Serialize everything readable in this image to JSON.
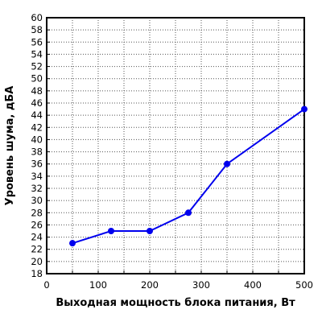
{
  "chart_data": {
    "type": "line",
    "title": "",
    "xlabel": "Выходная мощность блока питания, Вт",
    "ylabel": "Уровень шума, дБА",
    "xlim": [
      0,
      500
    ],
    "ylim": [
      18,
      60
    ],
    "xticks": [
      "0",
      "100",
      "200",
      "300",
      "400",
      "500"
    ],
    "yticks": [
      "18",
      "20",
      "22",
      "24",
      "26",
      "28",
      "30",
      "32",
      "34",
      "36",
      "38",
      "40",
      "42",
      "44",
      "46",
      "48",
      "50",
      "52",
      "54",
      "56",
      "58",
      "60"
    ],
    "grid": true,
    "legend": "none",
    "series": [
      {
        "x": [
          50,
          125,
          200,
          275,
          350,
          500
        ],
        "y": [
          23,
          25,
          25,
          28,
          36,
          45
        ],
        "color": "#0000ee"
      }
    ]
  }
}
